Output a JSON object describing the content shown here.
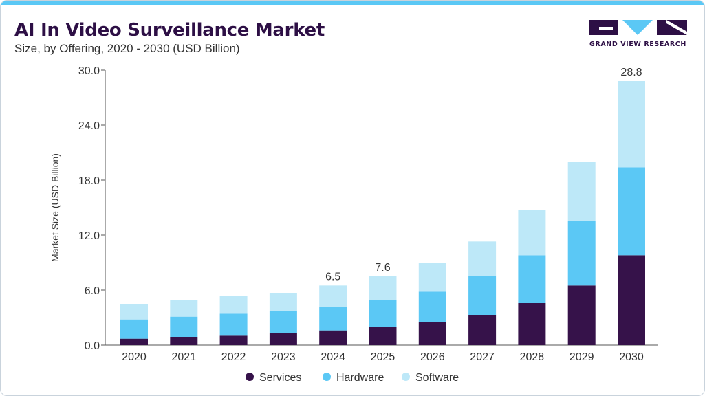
{
  "header": {
    "title": "AI In Video Surveillance Market",
    "subtitle": "Size, by Offering, 2020 - 2030 (USD Billion)"
  },
  "brand": {
    "name": "GRAND VIEW RESEARCH",
    "accent": "#5bc8f5",
    "primary": "#2d0f45"
  },
  "chart_data": {
    "type": "bar",
    "stacked": true,
    "categories": [
      "2020",
      "2021",
      "2022",
      "2023",
      "2024",
      "2025",
      "2026",
      "2027",
      "2028",
      "2029",
      "2030"
    ],
    "series": [
      {
        "name": "Services",
        "color": "#36124a",
        "values": [
          0.7,
          0.9,
          1.1,
          1.3,
          1.6,
          2.0,
          2.5,
          3.3,
          4.6,
          6.5,
          9.8
        ]
      },
      {
        "name": "Hardware",
        "color": "#5bc8f5",
        "values": [
          2.1,
          2.2,
          2.4,
          2.4,
          2.6,
          2.9,
          3.4,
          4.2,
          5.2,
          7.0,
          9.6
        ]
      },
      {
        "name": "Software",
        "color": "#bde8f8",
        "values": [
          1.7,
          1.8,
          1.9,
          2.0,
          2.3,
          2.6,
          3.1,
          3.8,
          4.9,
          6.5,
          9.4
        ]
      }
    ],
    "totals_labels": [
      {
        "index": 4,
        "text": "6.5"
      },
      {
        "index": 5,
        "text": "7.6"
      },
      {
        "index": 10,
        "text": "28.8"
      }
    ],
    "ylabel": "Market Size (USD Billion)",
    "xlabel": "",
    "ylim": [
      0,
      30
    ],
    "yticks": [
      "0.0",
      "6.0",
      "12.0",
      "18.0",
      "24.0",
      "30.0"
    ],
    "grid": false,
    "legend_position": "bottom-center"
  }
}
